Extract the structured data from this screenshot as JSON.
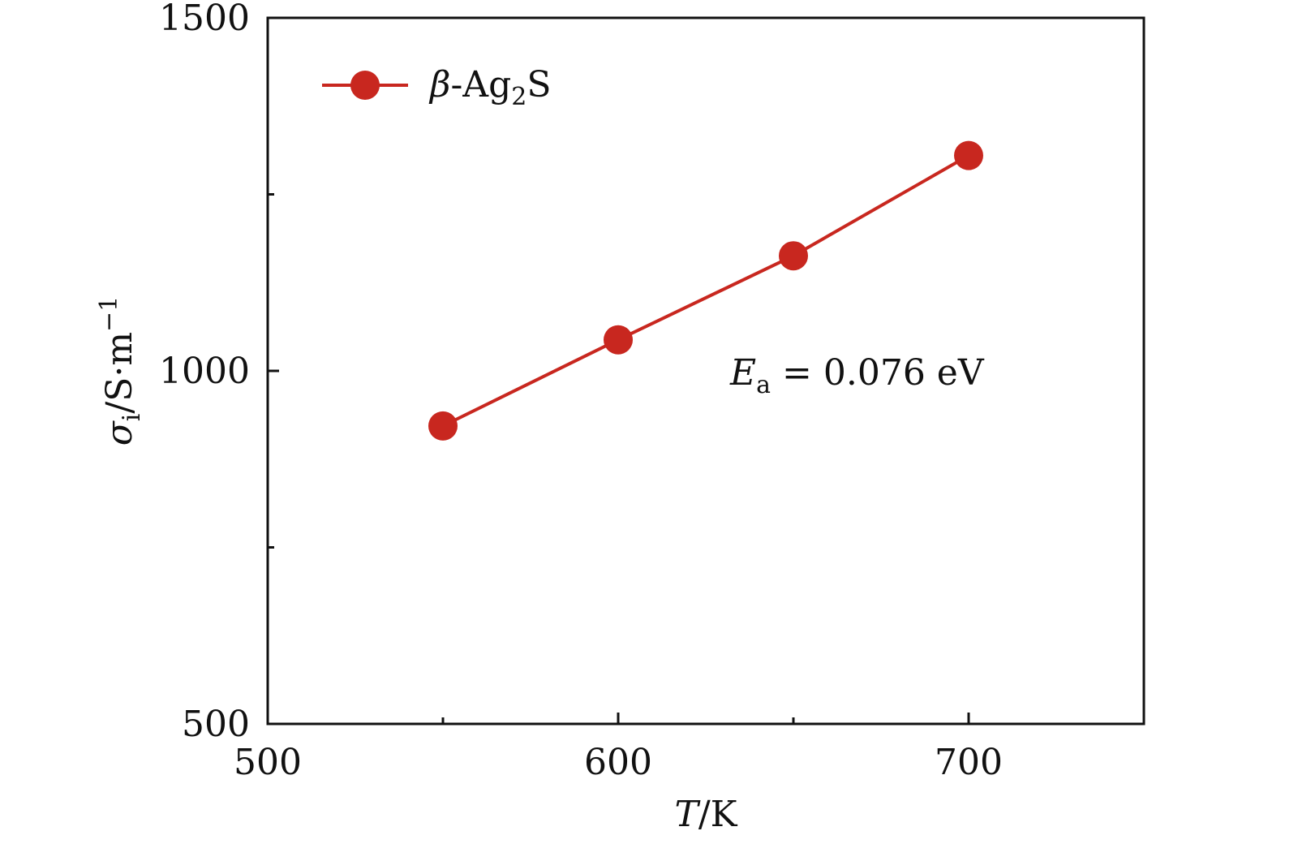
{
  "chart_data": {
    "type": "line",
    "xlim": [
      500,
      750
    ],
    "ylim": [
      500,
      1500
    ],
    "x_ticks": [
      500,
      600,
      700
    ],
    "x_tick_labels": [
      "500",
      "600",
      "700"
    ],
    "x_minor_ticks": [
      550,
      650
    ],
    "y_ticks": [
      500,
      1000,
      1500
    ],
    "y_tick_labels": [
      "500",
      "1000",
      "1500"
    ],
    "y_minor_ticks": [
      750,
      1250
    ],
    "xlabel": {
      "symbol": "T",
      "unit": "/K"
    },
    "ylabel": {
      "symbol": "σ",
      "subscript": "i",
      "unit": "/S·m",
      "superscript": "−1"
    },
    "series": [
      {
        "name": {
          "prefix": "β",
          "main": "-Ag",
          "subscript": "2",
          "suffix": "S"
        },
        "color": "#c8271f",
        "x": [
          550,
          600,
          650,
          700
        ],
        "y": [
          922,
          1044,
          1163,
          1305
        ]
      }
    ],
    "legend_position": "top-left",
    "annotation": {
      "symbol": "E",
      "subscript": "a",
      "text": " = 0.076 eV",
      "x": 665,
      "y": 1000
    },
    "grid": false
  }
}
